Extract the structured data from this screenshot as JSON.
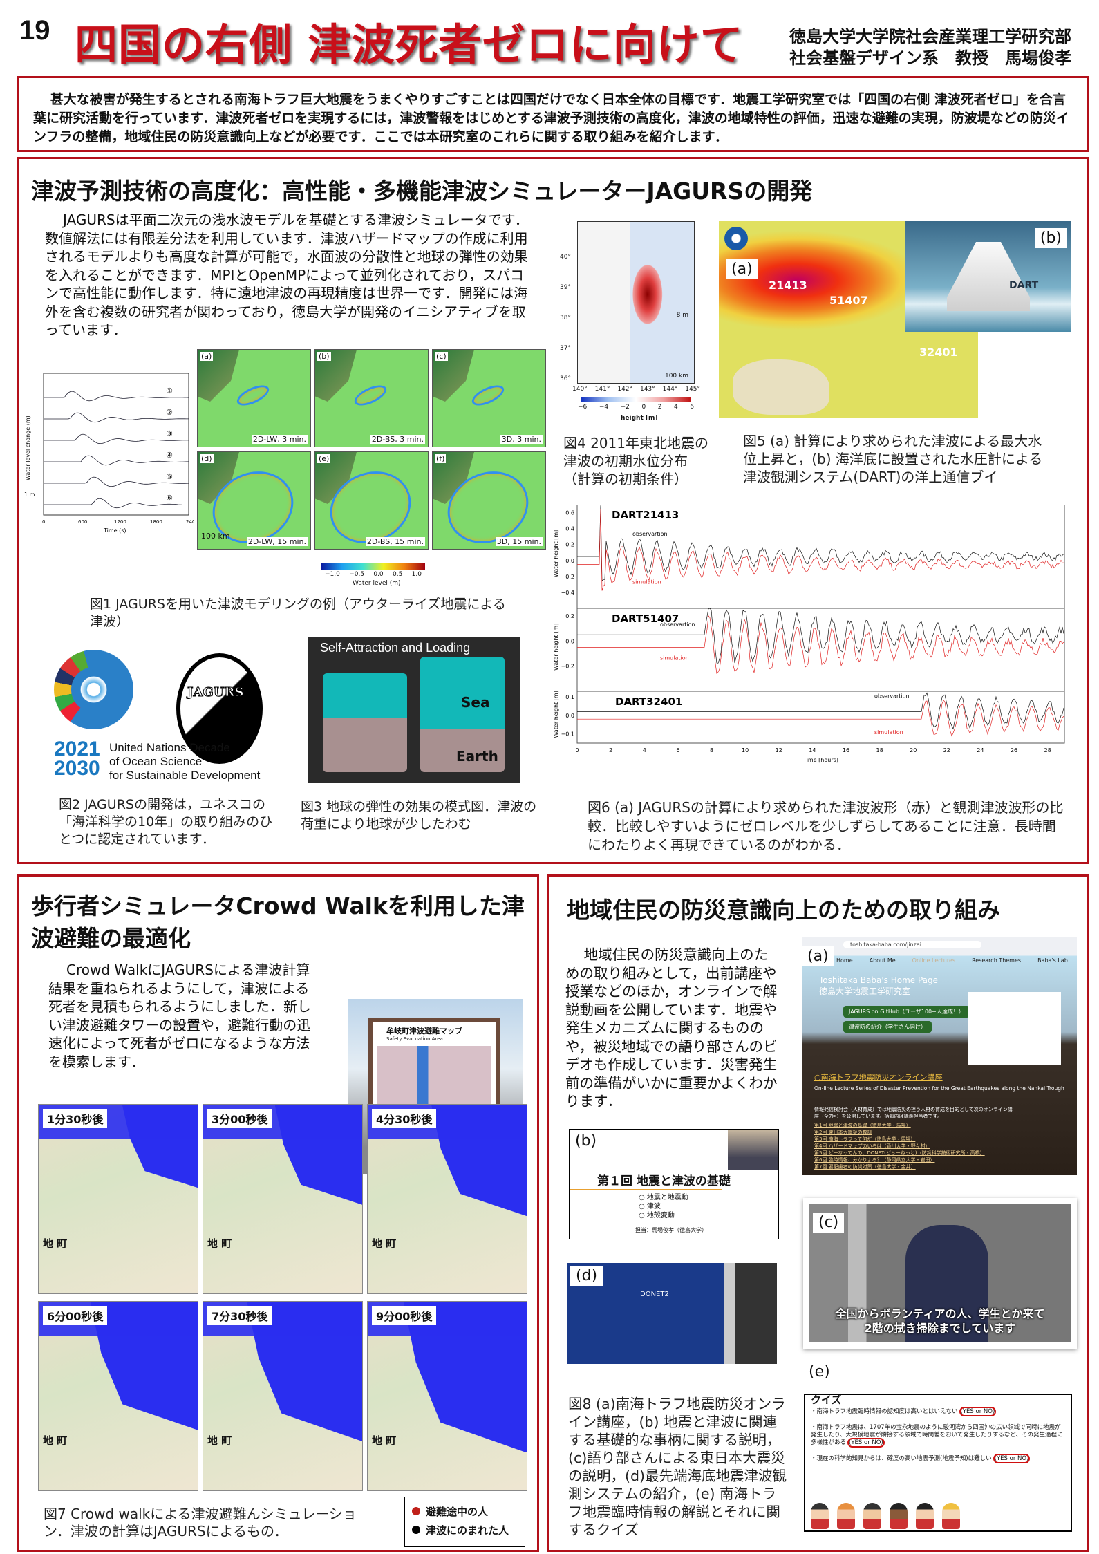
{
  "poster": {
    "number": "19",
    "title": "四国の右側 津波死者ゼロに向けて",
    "affiliation": [
      "徳島大学大学院社会産業理工学研究部",
      "社会基盤デザイン系　教授　馬場俊孝"
    ],
    "intro": "甚大な被害が発生するとされる南海トラフ巨大地震をうまくやりすごすことは四国だけでなく日本全体の目標です．地震工学研究室では「四国の右側 津波死者ゼロ」を合言葉に研究活動を行っています．津波死者ゼロを実現するには，津波警報をはじめとする津波予測技術の高度化，津波の地域特性の評価，迅速な避難の実現，防波堤などの防災インフラの整備，地域住民の防災意識向上などが必要です．ここでは本研究室のこれらに関する取り組みを紹介します．",
    "accent_color": "#b3101a"
  },
  "section1": {
    "heading": "津波予測技術の高度化：高性能・多機能津波シミュレーターJAGURSの開発",
    "body": "JAGURSは平面二次元の浅水波モデルを基礎とする津波シミュレータです．数値解法には有限差分法を利用しています．津波ハザードマップの作成に利用されるモデルよりも高度な計算が可能で，水面波の分散性と地球の弾性の効果を入れることができます．MPIとOpenMPによって並列化されており，スパコンで高性能に動作します．特に遠地津波の再現精度は世界一です．開発には海外を含む複数の研究者が関わっており，徳島大学が開発のイニシアティブを取っています．",
    "fig1": {
      "ylabel": "Water level change (m)",
      "xlabel": "Time (s)",
      "xticks": [
        "0",
        "600",
        "1200",
        "1800",
        "2400"
      ],
      "scale": "1 m",
      "stations": [
        "①",
        "②",
        "③",
        "④",
        "⑤",
        "⑥"
      ],
      "panels": [
        {
          "id": "(a)",
          "tag": "2D-LW, 3 min."
        },
        {
          "id": "(b)",
          "tag": "2D-BS, 3 min."
        },
        {
          "id": "(c)",
          "tag": "3D, 3 min."
        },
        {
          "id": "(d)",
          "tag": "2D-LW, 15 min."
        },
        {
          "id": "(e)",
          "tag": "2D-BS, 15 min."
        },
        {
          "id": "(f)",
          "tag": "3D, 15 min."
        }
      ],
      "scalebar": "100 km",
      "colorbar_ticks": [
        "−1.0",
        "−0.5",
        "0.0",
        "0.5",
        "1.0"
      ],
      "colorbar_label": "Water level (m)",
      "caption": "図1 JAGURSを用いた津波モデリングの例（アウターライズ地震による津波）"
    },
    "fig4": {
      "lat_ticks": [
        "40°",
        "39°",
        "38°",
        "37°",
        "36°"
      ],
      "lon_ticks": [
        "140°",
        "141°",
        "142°",
        "143°",
        "144°",
        "145°"
      ],
      "cbar_ticks": [
        "−6",
        "−4",
        "−2",
        "0",
        "2",
        "4",
        "6"
      ],
      "cbar_label": "height [m]",
      "scale": "100 km",
      "contour": "8 m",
      "caption": "図4 2011年東北地震の津波の初期水位分布（計算の初期条件）"
    },
    "fig5": {
      "label_a": "(a)",
      "label_b": "(b)",
      "stations": [
        "21413",
        "51407",
        "32401"
      ],
      "buoy_text": "DART",
      "caption": "図5 (a) 計算により求められた津波による最大水位上昇と，(b) 海洋底に設置された水圧計による津波観測システム(DART)の洋上通信ブイ"
    },
    "fig6": {
      "xlabel": "Time [hours]",
      "ylabel": "Water height [m]",
      "xticks": [
        "0",
        "2",
        "4",
        "6",
        "8",
        "10",
        "12",
        "14",
        "16",
        "18",
        "20",
        "22",
        "24",
        "26",
        "28"
      ],
      "panels": [
        {
          "name": "DART21413",
          "yticks": [
            "0.6",
            "0.4",
            "0.2",
            "0.0",
            "−0.2",
            "−0.4"
          ]
        },
        {
          "name": "DART51407",
          "yticks": [
            "0.2",
            "0.0",
            "−0.2"
          ]
        },
        {
          "name": "DART32401",
          "yticks": [
            "0.1",
            "0.0",
            "−0.1"
          ]
        }
      ],
      "obs_label": "observartion",
      "sim_label": "simulation",
      "obs_color": "#111111",
      "sim_color": "#e02020",
      "caption": "図6 (a) JAGURSの計算により求められた津波波形（赤）と観測津波波形の比較．比較しやすいようにゼロレベルを少しずらしてあることに注意．長時間にわたりよく再現できているのがわかる．"
    },
    "fig2": {
      "year1": "2021",
      "year2": "2030",
      "decade": [
        "United Nations Decade",
        "of Ocean Science",
        "for Sustainable Development"
      ],
      "logo_text": "JAGURS",
      "caption": "図2 JAGURSの開発は，ユネスコの「海洋科学の10年」の取り組みのひとつに認定されています．"
    },
    "fig3": {
      "title": "Self-Attraction and Loading",
      "sea": "Sea",
      "earth": "Earth",
      "caption": "図3 地球の弾性の効果の模式図．津波の荷重により地球が少したわむ"
    }
  },
  "section2": {
    "heading": "歩行者シミュレータCrowd Walkを利用した津波避難の最適化",
    "body": "Crowd WalkにJAGURSによる津波計算結果を重ねられるようにして，津波による死者を見積もられるようにしました．新しい津波避難タワーの設置や，避難行動の迅速化によって死者がゼロになるような方法を模索します．",
    "sign": {
      "title": "牟岐町津波避難マップ",
      "subtitle": "Safety Evacuation Area"
    },
    "maps": [
      {
        "time": "1分30秒後",
        "flood": 0.15
      },
      {
        "time": "3分00秒後",
        "flood": 0.3
      },
      {
        "time": "4分30秒後",
        "flood": 0.4
      },
      {
        "time": "6分00秒後",
        "flood": 0.55
      },
      {
        "time": "7分30秒後",
        "flood": 0.65
      },
      {
        "time": "9分00秒後",
        "flood": 0.75
      }
    ],
    "town_label": "地 町",
    "caption": "図7 Crowd walkによる津波避難んシミュレーション．津波の計算はJAGURSによるもの．",
    "legend": [
      {
        "label": "避難途中の人",
        "color": "#c0201a"
      },
      {
        "label": "津波にのまれた人",
        "color": "#000000"
      }
    ]
  },
  "section3": {
    "heading": "地域住民の防災意識向上のための取り組み",
    "body": "地域住民の防災意識向上のための取り組みとして，出前講座や授業などのほか，オンラインで解説動画を公開しています．地震や発生メカニズムに関するもののや，被災地域での語り部さんのビデオも作成しています．災害発生前の準備がいかに重要かよくわかります．",
    "fig_a": {
      "label": "(a)",
      "url": "toshitaka-baba.com/jinzai",
      "nav": [
        "Home",
        "About Me",
        "Online Lectures",
        "Research Themes",
        "Baba's Lab."
      ],
      "site_title": [
        "Toshitaka Baba's Home Page",
        "徳島大学地震工学研究室"
      ],
      "buttons": [
        "JAGURS on GitHub（ユーザ100+人達成！）",
        "津波防の紹介（学生さん向け）"
      ],
      "lecture_title": "○南海トラフ地震防災オンライン講座",
      "lecture_en": "On-line Lecture Series of Disaster Prevention for the Great Earthquakes along the Nankai Trough",
      "lecture_desc": "情報発信検討会（人材育成）では地震防災の担う人材の育成を目的として次のオンライン講座（全7回）を公開しています。括弧内は講義担当者です。",
      "lectures": [
        "第1回 地震と津波の基礎（徳島大学・馬場）",
        "第2回 東日本大震災の教訓",
        "第3回 南海トラフって何だ（徳島大学・馬場）",
        "第4回 ハザードマップのいろは（香川大学・野々村）",
        "第5回 どーなってんの、DONET(どぅーねっと)（防災科学技術研究所・高橋）",
        "第6回 臨時情報、分かりよる？（静岡県立大学・岩田）",
        "第7回 要配慮者の防災対策（徳島大学・金井）"
      ]
    },
    "fig_b": {
      "label": "(b)",
      "title": "第１回 地震と津波の基礎",
      "items": [
        "○ 地震と地震動",
        "○ 津波",
        "○ 地殻変動"
      ],
      "lecturer": "担当：馬場俊孝（徳島大学）"
    },
    "fig_c": {
      "label": "(c)",
      "subtitle": [
        "全国からボランティアの人、学生とか来て",
        "2階の拭き掃除までしています"
      ]
    },
    "fig_d": {
      "label": "(d)",
      "screen_text": "DONET2"
    },
    "fig_e": {
      "label": "(e)",
      "quiz_title": "クイズ",
      "questions": [
        {
          "text": "・南海トラフ地震臨時情報の認知度は高いとはいえない",
          "answer": "(YES or NO)"
        },
        {
          "text": "・南海トラフ地震は、1707年の宝永地震のように駿河湾から四国沖の広い領域で同時に地震が発生したり、大規模地震が隣接する領域で時間差をおいて発生したりするなど、その発生過程に多様性がある",
          "answer": "(YES or NO)"
        },
        {
          "text": "・現在の科学的知見からは、確度の高い地震予測(地震予知)は難しい",
          "answer": "(YES or NO)"
        }
      ]
    },
    "caption": "図8 (a)南海トラフ地震防災オンライン講座，(b) 地震と津波に関連する基礎的な事柄に関する説明，(c)語り部さんによる東日本大震災の説明，(d)最先端海底地震津波観測システムの紹介，(e) 南海トラフ地震臨時情報の解説とそれに関するクイズ"
  }
}
